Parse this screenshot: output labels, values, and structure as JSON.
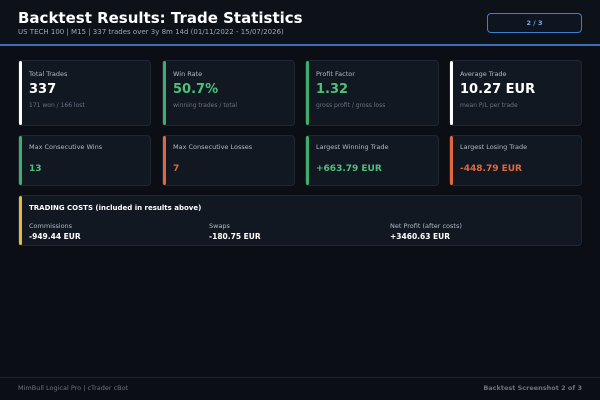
{
  "header": {
    "title": "Backtest Results: Trade Statistics",
    "subtitle": "US TECH 100  |  M15  |  337 trades over 3y 8m 14d (01/11/2022 - 15/07/2026)",
    "page_indicator": "2 / 3"
  },
  "colors": {
    "background": "#0b0e14",
    "card": "#121822",
    "accent_blue": "#3d6fb8",
    "positive": "#4fc079",
    "negative": "#e2673f",
    "costs_accent": "#e8b93a"
  },
  "stats_row1": [
    {
      "label": "Total Trades",
      "value": "337",
      "note": "171 won / 166 lost",
      "tone": "white"
    },
    {
      "label": "Win Rate",
      "value": "50.7%",
      "note": "winning trades / total",
      "tone": "green"
    },
    {
      "label": "Profit Factor",
      "value": "1.32",
      "note": "gross profit / gross loss",
      "tone": "green"
    },
    {
      "label": "Average Trade",
      "value": "10.27 EUR",
      "note": "mean P/L per trade",
      "tone": "white"
    }
  ],
  "stats_row2": [
    {
      "label": "Max Consecutive Wins",
      "value": "13",
      "tone": "green"
    },
    {
      "label": "Max Consecutive Losses",
      "value": "7",
      "tone": "red"
    },
    {
      "label": "Largest Winning Trade",
      "value": "+663.79 EUR",
      "tone": "green"
    },
    {
      "label": "Largest Losing Trade",
      "value": "-448.79 EUR",
      "tone": "red"
    }
  ],
  "costs": {
    "title": "TRADING COSTS (included in results above)",
    "items": [
      {
        "label": "Commissions",
        "value": "-949.44 EUR"
      },
      {
        "label": "Swaps",
        "value": "-180.75 EUR"
      },
      {
        "label": "Net Profit (after costs)",
        "value": "+3460.63 EUR"
      }
    ]
  },
  "footer": {
    "left": "MimBull Logical Pro  |  cTrader cBot",
    "right": "Backtest Screenshot 2 of 3"
  }
}
